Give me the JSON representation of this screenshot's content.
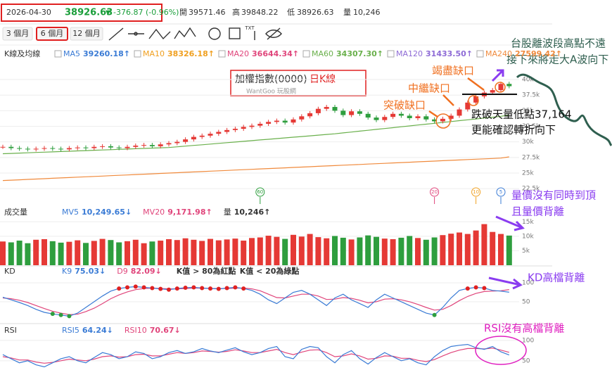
{
  "header": {
    "date": "2026-04-30",
    "price": "38926.63",
    "change_arrow": "▼",
    "change": "-376.87 (-0.96%)",
    "open_label": "開",
    "open": "39571.46",
    "high_label": "高",
    "high": "39848.22",
    "low_label": "低",
    "low": "38926.63",
    "volume_label": "量",
    "volume": "10,246"
  },
  "toolbar": {
    "ranges": [
      "3 個月",
      "6 個月",
      "12 個月"
    ],
    "selected": 1,
    "text_tool": "TXT"
  },
  "price": {
    "legend_title": "K線及均線",
    "title": "加權指數(0000)",
    "subtitle": "日K線",
    "watermark": "WantGoo 玩股網",
    "ma": [
      {
        "name": "MA5",
        "value": "39260.18↑",
        "color": "#3a7bd5"
      },
      {
        "name": "MA10",
        "value": "38326.18↑",
        "color": "#f0a020"
      },
      {
        "name": "MA20",
        "value": "36644.34↑",
        "color": "#e0457b"
      },
      {
        "name": "MA60",
        "value": "34307.30↑",
        "color": "#6ab04c",
        "values": [
          28100,
          28150,
          28200,
          28250,
          28300,
          28350,
          28400,
          28450,
          28500,
          28550,
          28600,
          28650,
          28700,
          28750,
          28800,
          28850,
          28900,
          28950,
          29000,
          29050,
          29100,
          29210,
          29320,
          29430,
          29540,
          29650,
          29760,
          29870,
          29980,
          30090,
          30200,
          30310,
          30420,
          30530,
          30640,
          30750,
          30860,
          30970,
          31080,
          31190,
          31300,
          31440,
          31580,
          31720,
          31860,
          32000,
          32140,
          32280,
          32420,
          32560,
          32700,
          32840,
          32980,
          33120,
          33260,
          33400,
          33540,
          33680,
          33820,
          33960,
          34100,
          34307
        ]
      },
      {
        "name": "MA120",
        "value": "31433.50↑",
        "color": "#8e6bd6"
      },
      {
        "name": "MA240",
        "value": "27599.42↑",
        "color": "#f08a3c",
        "values": [
          23800,
          23860,
          23920,
          23980,
          24040,
          24100,
          24160,
          24220,
          24280,
          24340,
          24400,
          24460,
          24520,
          24580,
          24640,
          24700,
          24760,
          24820,
          24880,
          24940,
          25000,
          25060,
          25120,
          25180,
          25240,
          25300,
          25360,
          25420,
          25480,
          25540,
          25600,
          25660,
          25720,
          25780,
          25840,
          25900,
          25960,
          26020,
          26080,
          26140,
          26200,
          26260,
          26320,
          26380,
          26440,
          26500,
          26560,
          26620,
          26680,
          26740,
          26800,
          26860,
          26920,
          26980,
          27040,
          27100,
          27160,
          27220,
          27280,
          27340,
          27400,
          27599
        ]
      }
    ],
    "ylim": [
      20600,
      41470
    ],
    "yticks": [
      {
        "value": 40000,
        "label": "40k"
      },
      {
        "value": 37500,
        "label": "37.5k"
      },
      {
        "value": 35000,
        "label": "35k"
      },
      {
        "value": 32500,
        "label": "32.5k"
      },
      {
        "value": 30000,
        "label": "30k"
      },
      {
        "value": 27500,
        "label": "27.5k"
      },
      {
        "value": 25000,
        "label": "25k"
      },
      {
        "value": 22500,
        "label": "22.5k"
      }
    ],
    "up_color": "#e53935",
    "down_color": "#2e9e3e",
    "closes": [
      29200,
      29000,
      28900,
      28800,
      28900,
      29000,
      28900,
      28800,
      29000,
      29100,
      29000,
      29200,
      29300,
      29100,
      29000,
      29200,
      29400,
      29500,
      29300,
      29600,
      29800,
      30000,
      30400,
      30800,
      31000,
      31300,
      31600,
      31900,
      32100,
      32400,
      32600,
      32900,
      33200,
      33400,
      33100,
      33600,
      34100,
      34600,
      35300,
      35600,
      35000,
      34300,
      34900,
      34500,
      33900,
      33500,
      34000,
      34500,
      34200,
      33800,
      34100,
      33600,
      33300,
      33700,
      34200,
      35200,
      36300,
      37300,
      37900,
      38300,
      39300,
      38927
    ],
    "markers": [
      {
        "label": "60",
        "color": "#2e9e3e",
        "index": 31
      },
      {
        "label": "20",
        "color": "#e0457b",
        "index": 52
      },
      {
        "label": "10",
        "color": "#f0a020",
        "index": 57
      },
      {
        "label": "5",
        "color": "#3a7bd5",
        "index": 60
      }
    ]
  },
  "volume": {
    "title": "成交量",
    "legend": [
      {
        "name": "MV5",
        "value": "10,249.65↓",
        "color": "#3a7bd5"
      },
      {
        "name": "MV20",
        "value": "9,171.98↑",
        "color": "#e0457b"
      },
      {
        "name": "量",
        "value": "10,246↑",
        "color": "#333"
      }
    ],
    "ylim": [
      0,
      17500
    ],
    "yticks": [
      {
        "value": 15000,
        "label": "15k"
      },
      {
        "value": 10000,
        "label": "10k"
      },
      {
        "value": 5000,
        "label": "5k"
      }
    ],
    "values": [
      8200,
      7900,
      8500,
      7600,
      8800,
      9000,
      8300,
      7800,
      8100,
      8600,
      7700,
      8400,
      9100,
      8700,
      7900,
      8300,
      8800,
      7600,
      8200,
      8500,
      9000,
      8700,
      9300,
      8800,
      8400,
      9100,
      8600,
      8900,
      9200,
      8500,
      9400,
      9600,
      10200,
      9800,
      9100,
      10500,
      9900,
      10800,
      9700,
      9300,
      10100,
      9500,
      8900,
      9600,
      10300,
      9800,
      9200,
      9000,
      9500,
      10100,
      9400,
      8800,
      9600,
      10400,
      10900,
      11300,
      10800,
      12000,
      14200,
      11500,
      10800,
      10246
    ]
  },
  "kd": {
    "title": "KD",
    "legend": [
      {
        "name": "K9",
        "value": "75.03↓",
        "color": "#3a7bd5"
      },
      {
        "name": "D9",
        "value": "82.09↓",
        "color": "#e0457b"
      }
    ],
    "rule_high": "K值 > 80為紅點",
    "rule_low": "K值 < 20為綠點",
    "red_dot_above": 80,
    "green_dot_below": 20,
    "ylim": [
      -4,
      113
    ],
    "yticks": [
      100,
      50
    ],
    "k": [
      62,
      55,
      48,
      40,
      30,
      22,
      18,
      15,
      12,
      20,
      35,
      50,
      65,
      78,
      85,
      88,
      90,
      88,
      86,
      84,
      82,
      85,
      87,
      88,
      86,
      85,
      84,
      86,
      88,
      85,
      80,
      70,
      55,
      45,
      60,
      75,
      80,
      70,
      55,
      40,
      60,
      70,
      55,
      45,
      35,
      55,
      70,
      60,
      50,
      40,
      30,
      20,
      15,
      35,
      60,
      80,
      85,
      88,
      86,
      80,
      78,
      75.03
    ],
    "d": [
      60,
      58,
      54,
      48,
      40,
      32,
      25,
      20,
      16,
      17,
      24,
      33,
      45,
      58,
      68,
      76,
      82,
      85,
      86,
      85,
      84,
      84,
      85,
      86,
      86,
      85,
      85,
      85,
      86,
      86,
      84,
      79,
      70,
      61,
      60,
      65,
      70,
      70,
      65,
      56,
      57,
      61,
      59,
      54,
      47,
      50,
      57,
      58,
      55,
      50,
      43,
      35,
      28,
      30,
      40,
      53,
      64,
      72,
      77,
      78,
      79,
      82.09
    ]
  },
  "rsi": {
    "title": "RSI",
    "legend": [
      {
        "name": "RSI5",
        "value": "64.24↓",
        "color": "#3a7bd5"
      },
      {
        "name": "RSI10",
        "value": "70.67↓",
        "color": "#e0457b"
      }
    ],
    "ylim": [
      -2,
      110
    ],
    "yticks": [
      100,
      50
    ],
    "rsi5": [
      65,
      55,
      45,
      50,
      40,
      35,
      45,
      55,
      60,
      50,
      45,
      58,
      70,
      65,
      55,
      60,
      72,
      68,
      55,
      60,
      70,
      75,
      68,
      72,
      80,
      74,
      70,
      76,
      82,
      72,
      65,
      70,
      80,
      85,
      60,
      55,
      78,
      85,
      82,
      60,
      45,
      65,
      75,
      55,
      42,
      58,
      70,
      60,
      50,
      55,
      45,
      40,
      60,
      75,
      85,
      88,
      90,
      82,
      78,
      85,
      72,
      64.24
    ],
    "rsi10": [
      60,
      57,
      52,
      52,
      47,
      44,
      46,
      50,
      54,
      52,
      50,
      54,
      60,
      62,
      59,
      60,
      65,
      66,
      62,
      62,
      66,
      70,
      68,
      70,
      74,
      73,
      71,
      73,
      77,
      74,
      70,
      70,
      74,
      78,
      70,
      65,
      71,
      76,
      77,
      70,
      60,
      62,
      67,
      62,
      54,
      56,
      62,
      61,
      56,
      56,
      51,
      48,
      53,
      62,
      70,
      76,
      80,
      80,
      79,
      81,
      76,
      70.67
    ]
  },
  "annotations": {
    "top1": "台股離波段高點不遠",
    "top2": "接下來將走大A波向下",
    "gap3": "竭盡缺口",
    "gap2": "中繼缺口",
    "gap1": "突破缺口",
    "break1": "跌破天量低點37,164",
    "break2": "更能確認轉折向下",
    "vol1": "量價沒有同時到頂",
    "vol2": "且量價背離",
    "kd": "KD高檔背離",
    "rsi": "RSI沒有高檔背離"
  }
}
